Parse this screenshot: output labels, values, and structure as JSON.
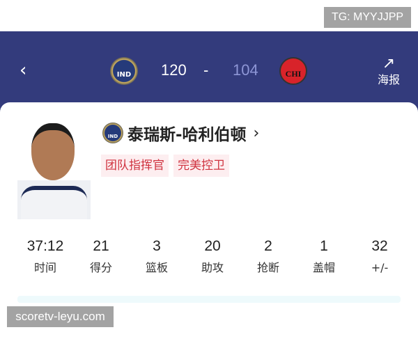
{
  "watermarks": {
    "top": "TG: MYYJJPP",
    "bottom": "scoretv-leyu.com"
  },
  "header": {
    "back_icon": "chevron-left-icon",
    "home_team": {
      "abbr": "IND",
      "score": "120"
    },
    "separator": "-",
    "away_team": {
      "abbr": "CHI",
      "score": "104"
    },
    "share": {
      "icon": "share-external-icon",
      "label": "海报"
    },
    "colors": {
      "background": "#333b7c",
      "away_score": "#8e96d6"
    }
  },
  "player": {
    "team": "IND",
    "name": "泰瑞斯-哈利伯顿",
    "tags": [
      "团队指挥官",
      "完美控卫"
    ],
    "tag_color": "#d0323f"
  },
  "stats": [
    {
      "value": "37:12",
      "label": "时间"
    },
    {
      "value": "21",
      "label": "得分"
    },
    {
      "value": "3",
      "label": "篮板"
    },
    {
      "value": "20",
      "label": "助攻"
    },
    {
      "value": "2",
      "label": "抢断"
    },
    {
      "value": "1",
      "label": "盖帽"
    },
    {
      "value": "32",
      "label": "+/-"
    }
  ]
}
